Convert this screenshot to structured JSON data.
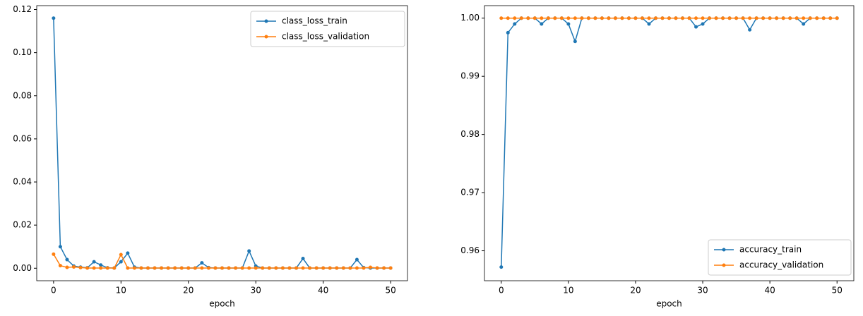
{
  "chart_data": [
    {
      "type": "line",
      "xlabel": "epoch",
      "x": [
        0,
        1,
        2,
        3,
        4,
        5,
        6,
        7,
        8,
        9,
        10,
        11,
        12,
        13,
        14,
        15,
        16,
        17,
        18,
        19,
        20,
        21,
        22,
        23,
        24,
        25,
        26,
        27,
        28,
        29,
        30,
        31,
        32,
        33,
        34,
        35,
        36,
        37,
        38,
        39,
        40,
        41,
        42,
        43,
        44,
        45,
        46,
        47,
        48,
        49,
        50
      ],
      "series": [
        {
          "name": "class_loss_train",
          "color": "#1f77b4",
          "values": [
            0.116,
            0.01,
            0.004,
            0.001,
            0.0005,
            0.0002,
            0.003,
            0.0015,
            0.0002,
            0.0001,
            0.003,
            0.007,
            0.0005,
            0.0001,
            0.0001,
            0.0001,
            0.0001,
            0.0001,
            0.0001,
            0.0001,
            0.0001,
            0.0001,
            0.0025,
            0.0003,
            0.0001,
            0.0001,
            0.0001,
            0.0001,
            0.0001,
            0.008,
            0.001,
            0.0001,
            0.0001,
            0.0001,
            0.0001,
            0.0001,
            0.0001,
            0.0045,
            0.0001,
            0.0001,
            0.0001,
            0.0001,
            0.0001,
            0.0001,
            0.0001,
            0.004,
            0.0003,
            0.0001,
            0.0001,
            0.0001,
            0.0001
          ]
        },
        {
          "name": "class_loss_validation",
          "color": "#ff7f0e",
          "values": [
            0.0065,
            0.0012,
            0.0004,
            0.0006,
            0.0003,
            0.0001,
            0.0001,
            0.0001,
            0.0001,
            0.0001,
            0.0063,
            0.0001,
            0.0001,
            0.0001,
            0.0001,
            0.0001,
            0.0001,
            0.0001,
            0.0001,
            0.0001,
            0.0001,
            0.0001,
            0.0001,
            0.0001,
            0.0001,
            0.0001,
            0.0001,
            0.0001,
            0.0001,
            0.0001,
            0.0001,
            0.0001,
            0.0001,
            0.0001,
            0.0001,
            0.0001,
            0.0001,
            0.0001,
            0.0001,
            0.0001,
            0.0001,
            0.0001,
            0.0001,
            0.0001,
            0.0001,
            0.0001,
            0.0001,
            0.0004,
            0.0001,
            0.0001,
            0.0001
          ]
        }
      ],
      "xlim": [
        -2.5,
        52.5
      ],
      "xticks": [
        0,
        10,
        20,
        30,
        40,
        50
      ],
      "ylim": [
        -0.0058,
        0.1218
      ],
      "yticks": [
        {
          "value": 0,
          "label": "0.00"
        },
        0.02,
        0.04,
        0.06,
        0.08,
        {
          "value": 0.1,
          "label": "0.10"
        },
        0.12
      ],
      "legend": "upper right"
    },
    {
      "type": "line",
      "xlabel": "epoch",
      "x": [
        0,
        1,
        2,
        3,
        4,
        5,
        6,
        7,
        8,
        9,
        10,
        11,
        12,
        13,
        14,
        15,
        16,
        17,
        18,
        19,
        20,
        21,
        22,
        23,
        24,
        25,
        26,
        27,
        28,
        29,
        30,
        31,
        32,
        33,
        34,
        35,
        36,
        37,
        38,
        39,
        40,
        41,
        42,
        43,
        44,
        45,
        46,
        47,
        48,
        49,
        50
      ],
      "series": [
        {
          "name": "accuracy_train",
          "color": "#1f77b4",
          "values": [
            0.9572,
            0.9975,
            0.999,
            1,
            1,
            1,
            0.999,
            1,
            1,
            1,
            0.999,
            0.996,
            1,
            1,
            1,
            1,
            1,
            1,
            1,
            1,
            1,
            1,
            0.999,
            1,
            1,
            1,
            1,
            1,
            1,
            0.9985,
            0.999,
            1,
            1,
            1,
            1,
            1,
            1,
            0.998,
            1,
            1,
            1,
            1,
            1,
            1,
            1,
            0.999,
            1,
            1,
            1,
            1,
            1
          ]
        },
        {
          "name": "accuracy_validation",
          "color": "#ff7f0e",
          "values": [
            1,
            1,
            1,
            1,
            1,
            1,
            1,
            1,
            1,
            1,
            1,
            1,
            1,
            1,
            1,
            1,
            1,
            1,
            1,
            1,
            1,
            1,
            1,
            1,
            1,
            1,
            1,
            1,
            1,
            1,
            1,
            1,
            1,
            1,
            1,
            1,
            1,
            1,
            1,
            1,
            1,
            1,
            1,
            1,
            1,
            1,
            1,
            1,
            1,
            1,
            1
          ]
        }
      ],
      "xlim": [
        -2.5,
        52.5
      ],
      "xticks": [
        0,
        10,
        20,
        30,
        40,
        50
      ],
      "ylim": [
        0.95485,
        1.00215
      ],
      "yticks": [
        0.96,
        0.97,
        0.98,
        0.99,
        {
          "value": 1,
          "label": "1.00"
        }
      ],
      "legend": "lower right"
    }
  ]
}
